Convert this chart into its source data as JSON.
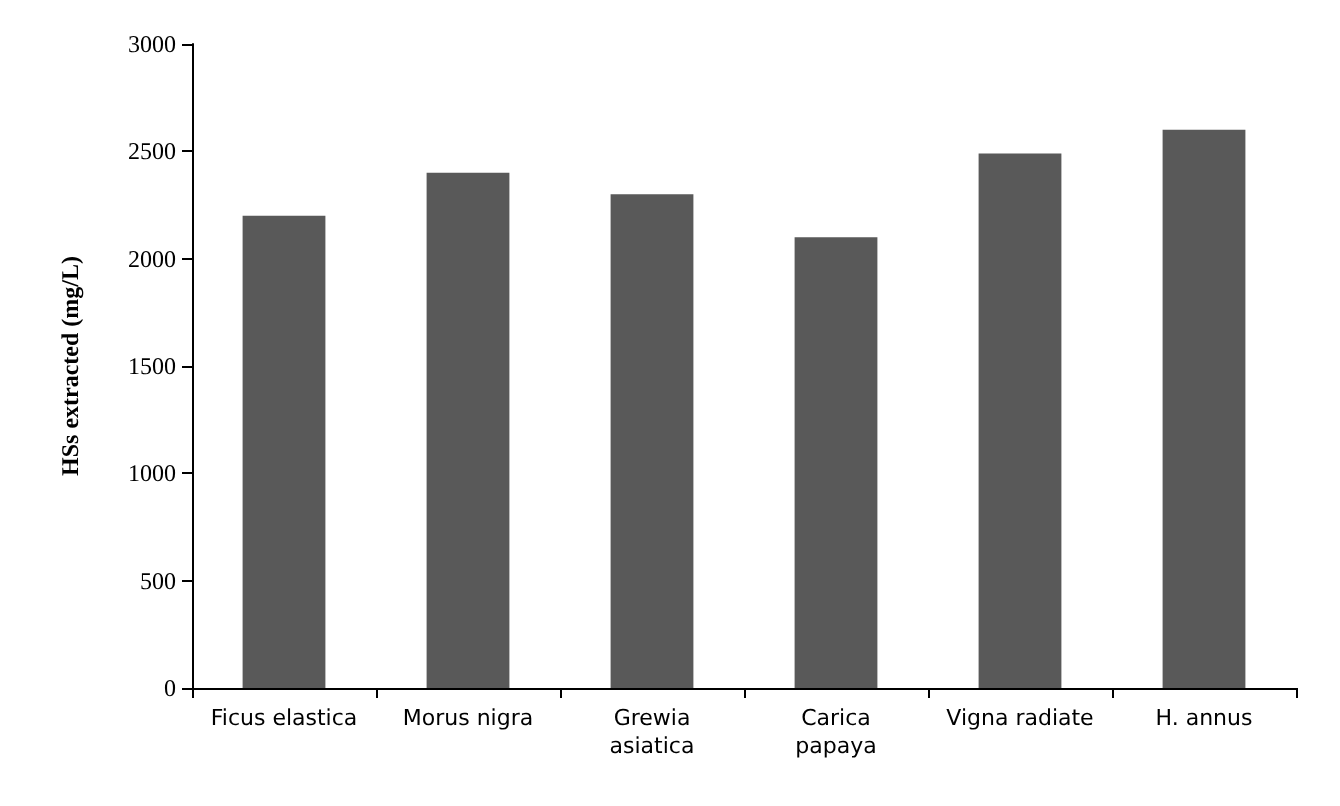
{
  "chart_data": {
    "type": "bar",
    "ylabel": "HSs extracted (mg/L)",
    "categories": [
      "Ficus elastica",
      "Morus nigra",
      "Grewia\nasiatica",
      "Carica\npapaya",
      "Vigna radiate",
      "H. annus"
    ],
    "values": [
      2200,
      2400,
      2300,
      2100,
      2490,
      2600
    ],
    "color": "#595959",
    "ylim": [
      0,
      3000
    ],
    "yticks": [
      0,
      500,
      1000,
      1500,
      2000,
      2500,
      3000
    ],
    "grid": false
  }
}
